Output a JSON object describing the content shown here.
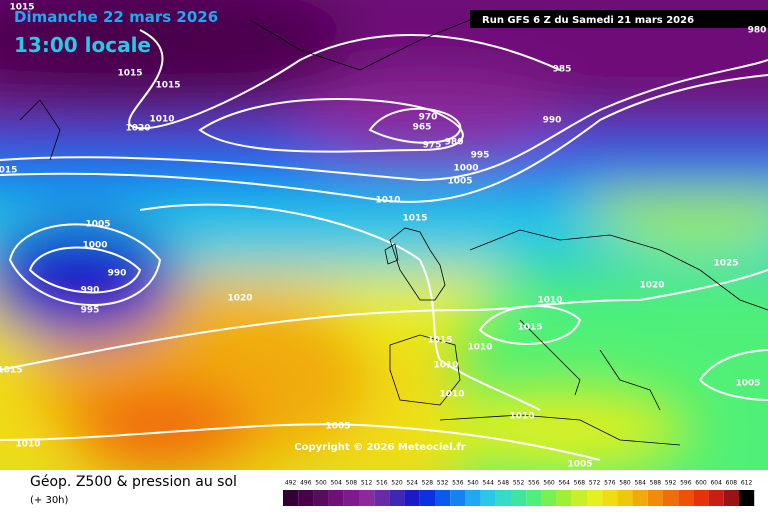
{
  "header": {
    "title": "Dimanche 22 mars 2026",
    "time": "13:00 locale",
    "run": "Run GFS 6 Z du Samedi 21 mars 2026"
  },
  "isobar_labels": [
    "1015",
    "1015",
    "1015",
    "1010",
    "1020",
    "015",
    "985",
    "970",
    "965",
    "975",
    "980",
    "990",
    "995",
    "1000",
    "1005",
    "1010",
    "1015",
    "1005",
    "1000",
    "990",
    "990",
    "995",
    "1020",
    "1025",
    "1020",
    "1010",
    "1015",
    "1015",
    "1010",
    "1010",
    "1010",
    "1010",
    "1015",
    "1005",
    "1010",
    "1005",
    "1005",
    "980"
  ],
  "copyright": "Copyright © 2026 Meteociel.fr",
  "footer": {
    "title": "Géop. Z500 & pression au sol",
    "lead": "(+ 30h)"
  },
  "colorbar": {
    "ticks": [
      492,
      496,
      500,
      504,
      508,
      512,
      516,
      520,
      524,
      528,
      532,
      536,
      540,
      544,
      548,
      552,
      556,
      560,
      564,
      568,
      572,
      576,
      580,
      584,
      588,
      592,
      596,
      600,
      604,
      608,
      612
    ],
    "colors": [
      "#320032",
      "#48004b",
      "#5a0a5f",
      "#6e1078",
      "#7e1a8a",
      "#8c2a9c",
      "#6a2aa8",
      "#3c28b4",
      "#1a1ac8",
      "#0a32e0",
      "#0a5af0",
      "#1482f0",
      "#1eaaf0",
      "#28c8e6",
      "#32dcc8",
      "#3ce6a0",
      "#50f078",
      "#78f050",
      "#a0f032",
      "#c8f028",
      "#e6f01e",
      "#f0dc14",
      "#f0c80a",
      "#f0aa0a",
      "#f08c0a",
      "#f06e0a",
      "#f0500a",
      "#e6320a",
      "#c81e14",
      "#961414",
      "#000000"
    ]
  }
}
